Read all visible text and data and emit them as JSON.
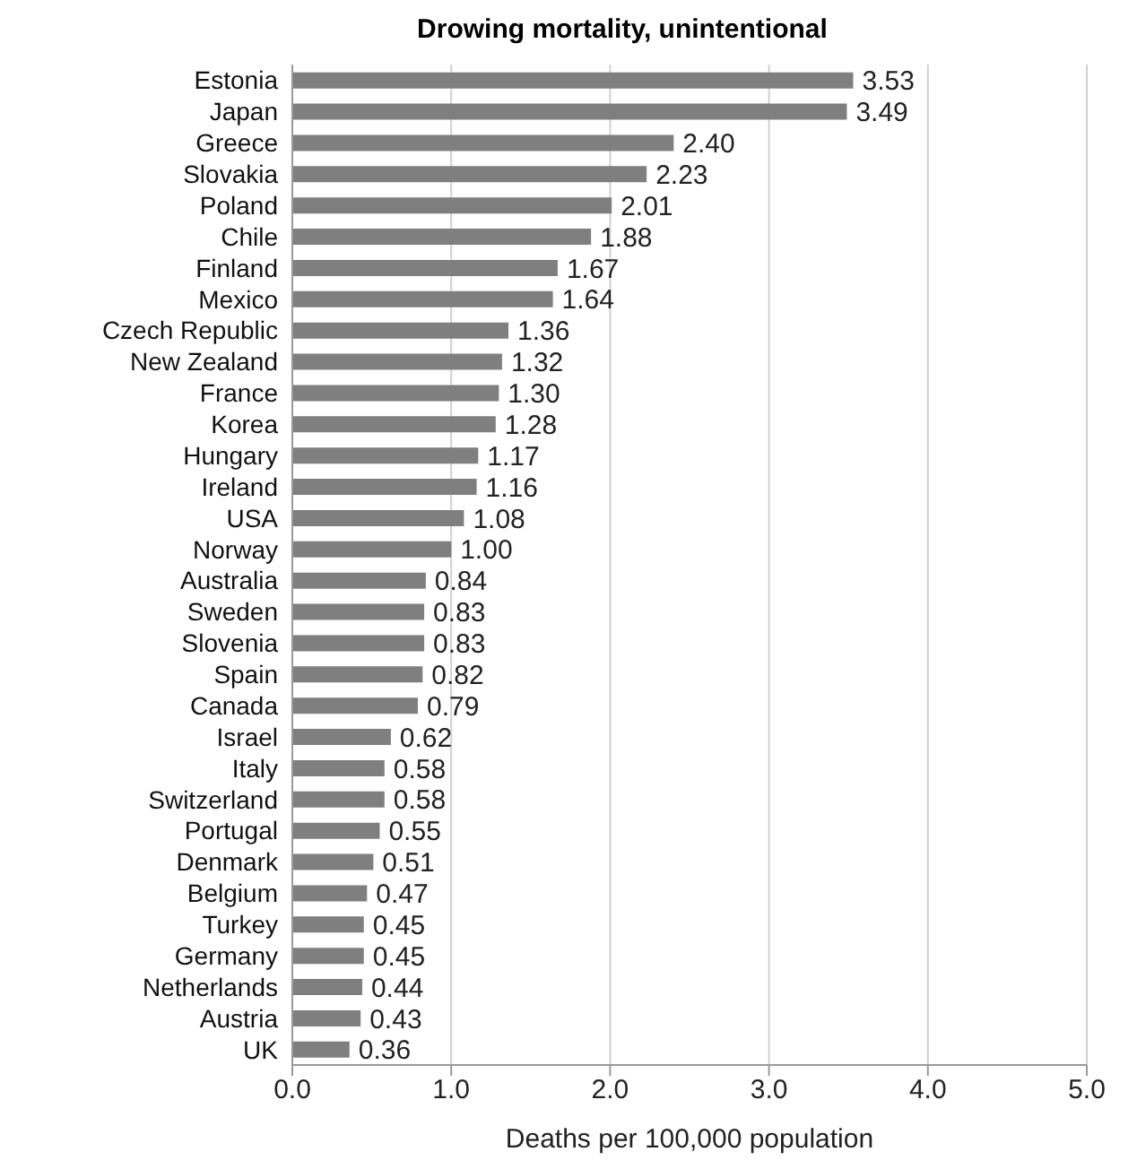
{
  "chart_data": {
    "type": "bar",
    "orientation": "horizontal",
    "title": "Drowing mortality, unintentional",
    "xlabel": "Deaths per 100,000 population",
    "categories": [
      "Estonia",
      "Japan",
      "Greece",
      "Slovakia",
      "Poland",
      "Chile",
      "Finland",
      "Mexico",
      "Czech Republic",
      "New Zealand",
      "France",
      "Korea",
      "Hungary",
      "Ireland",
      "USA",
      "Norway",
      "Australia",
      "Sweden",
      "Slovenia",
      "Spain",
      "Canada",
      "Israel",
      "Italy",
      "Switzerland",
      "Portugal",
      "Denmark",
      "Belgium",
      "Turkey",
      "Germany",
      "Netherlands",
      "Austria",
      "UK"
    ],
    "values": [
      3.53,
      3.49,
      2.4,
      2.23,
      2.01,
      1.88,
      1.67,
      1.64,
      1.36,
      1.32,
      1.3,
      1.28,
      1.17,
      1.16,
      1.08,
      1.0,
      0.84,
      0.83,
      0.83,
      0.82,
      0.79,
      0.62,
      0.58,
      0.58,
      0.55,
      0.51,
      0.47,
      0.45,
      0.45,
      0.44,
      0.43,
      0.36
    ],
    "value_labels": [
      "3.53",
      "3.49",
      "2.40",
      "2.23",
      "2.01",
      "1.88",
      "1.67",
      "1.64",
      "1.36",
      "1.32",
      "1.30",
      "1.28",
      "1.17",
      "1.16",
      "1.08",
      "1.00",
      "0.84",
      "0.83",
      "0.83",
      "0.82",
      "0.79",
      "0.62",
      "0.58",
      "0.58",
      "0.55",
      "0.51",
      "0.47",
      "0.45",
      "0.45",
      "0.44",
      "0.43",
      "0.36"
    ],
    "color": "#7f7f7f",
    "xlim": [
      0,
      5
    ],
    "xticks": [
      {
        "value": 0,
        "label": "0.0"
      },
      {
        "value": 1,
        "label": "1.0"
      },
      {
        "value": 2,
        "label": "2.0"
      },
      {
        "value": 3,
        "label": "3.0"
      },
      {
        "value": 4,
        "label": "4.0"
      },
      {
        "value": 5,
        "label": "5.0"
      }
    ],
    "grid": "x"
  }
}
